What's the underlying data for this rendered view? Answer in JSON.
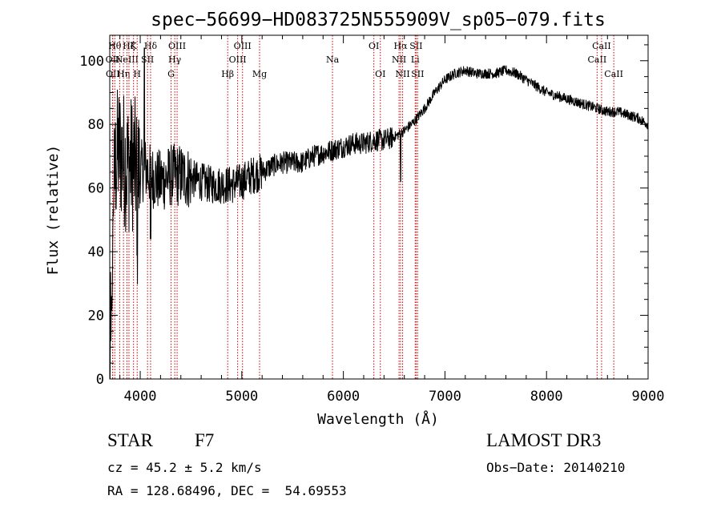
{
  "chart_data": {
    "type": "line",
    "title": "spec−56699−HD083725N555909V_sp05−079.fits",
    "xlabel": "Wavelength (Å)",
    "ylabel": "Flux (relative)",
    "xlim": [
      3700,
      9000
    ],
    "ylim": [
      0,
      108
    ],
    "xticks": [
      4000,
      5000,
      6000,
      7000,
      8000,
      9000
    ],
    "yticks": [
      0,
      20,
      40,
      60,
      80,
      100
    ],
    "grid": false,
    "line_color": "#000000",
    "marker_color": "#cc0000",
    "spectrum_anchors": {
      "x": [
        3700,
        3720,
        3735,
        3760,
        3790,
        3830,
        3870,
        3920,
        3970,
        4000,
        4050,
        4100,
        4200,
        4300,
        4400,
        4500,
        4600,
        4700,
        4800,
        4900,
        5000,
        5100,
        5200,
        5300,
        5400,
        5500,
        5600,
        5700,
        5800,
        5900,
        6000,
        6100,
        6200,
        6300,
        6400,
        6500,
        6550,
        6600,
        6700,
        6800,
        6900,
        7000,
        7100,
        7200,
        7300,
        7400,
        7500,
        7600,
        7700,
        7800,
        7900,
        8000,
        8100,
        8200,
        8300,
        8400,
        8500,
        8600,
        8700,
        8800,
        8900,
        9000
      ],
      "y": [
        5,
        20,
        55,
        68,
        72,
        70,
        67,
        68,
        66,
        65,
        66,
        64,
        62,
        64,
        64,
        63,
        62,
        61,
        61,
        61,
        62,
        64,
        65,
        67,
        68,
        68,
        68,
        70,
        71,
        72,
        73,
        74,
        74,
        75,
        75,
        76,
        77,
        78,
        81,
        85,
        90,
        94,
        96,
        97,
        96,
        96,
        96,
        97,
        96,
        94,
        92,
        90,
        89,
        88,
        87,
        86,
        85,
        84,
        84,
        83,
        82,
        80
      ]
    },
    "line_markers": [
      {
        "wl": 3727,
        "label": "OII",
        "row": 2
      },
      {
        "wl": 3730,
        "label": "OII",
        "row": 3
      },
      {
        "wl": 3750,
        "label": "Hθ",
        "row": 1
      },
      {
        "wl": 3798,
        "label": "",
        "row": 0
      },
      {
        "wl": 3835,
        "label": "Hη",
        "row": 3
      },
      {
        "wl": 3869,
        "label": "NeIII",
        "row": 2
      },
      {
        "wl": 3889,
        "label": "Hζ",
        "row": 1
      },
      {
        "wl": 3934,
        "label": "K",
        "row": 1
      },
      {
        "wl": 3970,
        "label": "H",
        "row": 3
      },
      {
        "wl": 4072,
        "label": "SII",
        "row": 2
      },
      {
        "wl": 4102,
        "label": "Hδ",
        "row": 1
      },
      {
        "wl": 4304,
        "label": "G",
        "row": 3
      },
      {
        "wl": 4340,
        "label": "Hγ",
        "row": 2
      },
      {
        "wl": 4363,
        "label": "OIII",
        "row": 1
      },
      {
        "wl": 4861,
        "label": "Hβ",
        "row": 3
      },
      {
        "wl": 4959,
        "label": "OIII",
        "row": 2
      },
      {
        "wl": 5007,
        "label": "OIII",
        "row": 1
      },
      {
        "wl": 5175,
        "label": "Mg",
        "row": 3
      },
      {
        "wl": 5893,
        "label": "Na",
        "row": 2
      },
      {
        "wl": 6300,
        "label": "OI",
        "row": 1
      },
      {
        "wl": 6364,
        "label": "OI",
        "row": 3
      },
      {
        "wl": 6548,
        "label": "NII",
        "row": 2
      },
      {
        "wl": 6563,
        "label": "Hα",
        "row": 1
      },
      {
        "wl": 6583,
        "label": "NII",
        "row": 3
      },
      {
        "wl": 6707,
        "label": "Li",
        "row": 2
      },
      {
        "wl": 6716,
        "label": "SII",
        "row": 1
      },
      {
        "wl": 6731,
        "label": "SII",
        "row": 3
      },
      {
        "wl": 8498,
        "label": "CaII",
        "row": 2
      },
      {
        "wl": 8542,
        "label": "CaII",
        "row": 1
      },
      {
        "wl": 8662,
        "label": "CaII",
        "row": 3
      }
    ]
  },
  "info": {
    "object_class": "STAR",
    "subclass": "F7",
    "survey": "LAMOST DR3",
    "cz": "cz = 45.2 ± 5.2 km/s",
    "obs_date": "Obs−Date: 20140210",
    "radec": "RA = 128.68496, DEC =  54.69553"
  }
}
